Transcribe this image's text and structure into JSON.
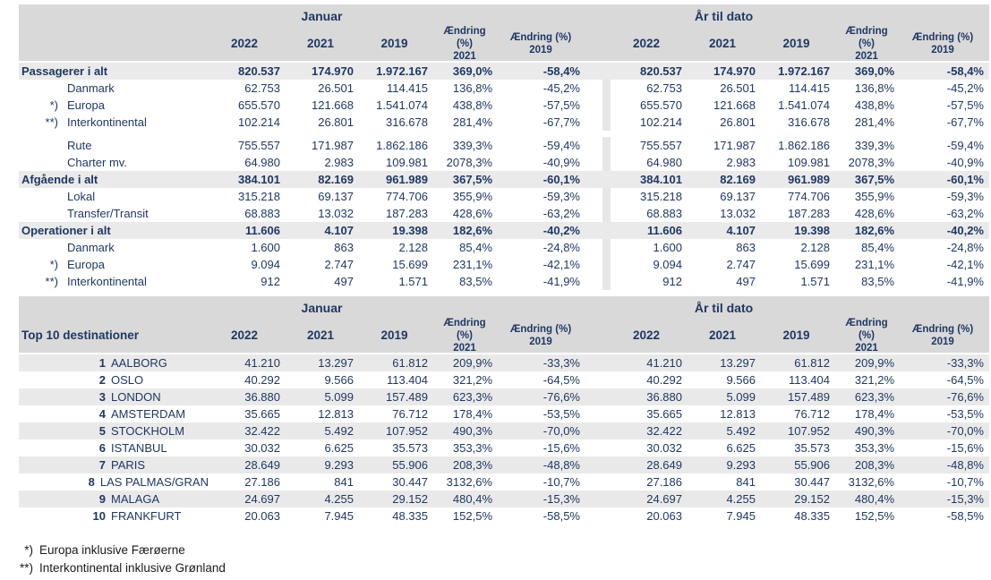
{
  "colors": {
    "text_navy": "#1F3864",
    "header_bg": "#D9D9D9",
    "total_row_bg": "#EAEAEA",
    "alt_row_bg": "#E9E9E9",
    "divider_strip": "#E7E7E7",
    "footnote_text": "#1A1A1A"
  },
  "period_headers": {
    "month": "Januar",
    "ytd": "År til dato"
  },
  "columns": {
    "years": [
      "2022",
      "2021",
      "2019"
    ],
    "change_label": "Ændring (%)",
    "change_years": [
      "2021",
      "2019"
    ]
  },
  "traffic_table": {
    "rows": [
      {
        "type": "total",
        "label": "Passagerer i alt",
        "januar": [
          "820.537",
          "174.970",
          "1.972.167",
          "369,0%",
          "-58,4%"
        ],
        "ytd": [
          "820.537",
          "174.970",
          "1.972.167",
          "369,0%",
          "-58,4%"
        ]
      },
      {
        "type": "sub",
        "marker": "",
        "label": "Danmark",
        "januar": [
          "62.753",
          "26.501",
          "114.415",
          "136,8%",
          "-45,2%"
        ],
        "ytd": [
          "62.753",
          "26.501",
          "114.415",
          "136,8%",
          "-45,2%"
        ]
      },
      {
        "type": "sub",
        "marker": "*)",
        "label": "Europa",
        "januar": [
          "655.570",
          "121.668",
          "1.541.074",
          "438,8%",
          "-57,5%"
        ],
        "ytd": [
          "655.570",
          "121.668",
          "1.541.074",
          "438,8%",
          "-57,5%"
        ]
      },
      {
        "type": "sub",
        "marker": "**)",
        "label": "Interkontinental",
        "januar": [
          "102.214",
          "26.801",
          "316.678",
          "281,4%",
          "-67,7%"
        ],
        "ytd": [
          "102.214",
          "26.801",
          "316.678",
          "281,4%",
          "-67,7%"
        ]
      },
      {
        "type": "gap"
      },
      {
        "type": "sub",
        "marker": "",
        "label": "Rute",
        "januar": [
          "755.557",
          "171.987",
          "1.862.186",
          "339,3%",
          "-59,4%"
        ],
        "ytd": [
          "755.557",
          "171.987",
          "1.862.186",
          "339,3%",
          "-59,4%"
        ]
      },
      {
        "type": "sub",
        "marker": "",
        "label": "Charter mv.",
        "januar": [
          "64.980",
          "2.983",
          "109.981",
          "2078,3%",
          "-40,9%"
        ],
        "ytd": [
          "64.980",
          "2.983",
          "109.981",
          "2078,3%",
          "-40,9%"
        ]
      },
      {
        "type": "total",
        "label": "Afgående i alt",
        "januar": [
          "384.101",
          "82.169",
          "961.989",
          "367,5%",
          "-60,1%"
        ],
        "ytd": [
          "384.101",
          "82.169",
          "961.989",
          "367,5%",
          "-60,1%"
        ]
      },
      {
        "type": "sub",
        "marker": "",
        "label": "Lokal",
        "januar": [
          "315.218",
          "69.137",
          "774.706",
          "355,9%",
          "-59,3%"
        ],
        "ytd": [
          "315.218",
          "69.137",
          "774.706",
          "355,9%",
          "-59,3%"
        ]
      },
      {
        "type": "sub",
        "marker": "",
        "label": "Transfer/Transit",
        "januar": [
          "68.883",
          "13.032",
          "187.283",
          "428,6%",
          "-63,2%"
        ],
        "ytd": [
          "68.883",
          "13.032",
          "187.283",
          "428,6%",
          "-63,2%"
        ]
      },
      {
        "type": "total",
        "label": "Operationer i alt",
        "januar": [
          "11.606",
          "4.107",
          "19.398",
          "182,6%",
          "-40,2%"
        ],
        "ytd": [
          "11.606",
          "4.107",
          "19.398",
          "182,6%",
          "-40,2%"
        ]
      },
      {
        "type": "sub",
        "marker": "",
        "label": "Danmark",
        "januar": [
          "1.600",
          "863",
          "2.128",
          "85,4%",
          "-24,8%"
        ],
        "ytd": [
          "1.600",
          "863",
          "2.128",
          "85,4%",
          "-24,8%"
        ]
      },
      {
        "type": "sub",
        "marker": "*)",
        "label": "Europa",
        "januar": [
          "9.094",
          "2.747",
          "15.699",
          "231,1%",
          "-42,1%"
        ],
        "ytd": [
          "9.094",
          "2.747",
          "15.699",
          "231,1%",
          "-42,1%"
        ]
      },
      {
        "type": "sub",
        "marker": "**)",
        "label": "Interkontinental",
        "januar": [
          "912",
          "497",
          "1.571",
          "83,5%",
          "-41,9%"
        ],
        "ytd": [
          "912",
          "497",
          "1.571",
          "83,5%",
          "-41,9%"
        ]
      }
    ]
  },
  "top10_table": {
    "title": "Top 10 destinationer",
    "rows": [
      {
        "rank": "1",
        "name": "AALBORG",
        "januar": [
          "41.210",
          "13.297",
          "61.812",
          "209,9%",
          "-33,3%"
        ],
        "ytd": [
          "41.210",
          "13.297",
          "61.812",
          "209,9%",
          "-33,3%"
        ]
      },
      {
        "rank": "2",
        "name": "OSLO",
        "januar": [
          "40.292",
          "9.566",
          "113.404",
          "321,2%",
          "-64,5%"
        ],
        "ytd": [
          "40.292",
          "9.566",
          "113.404",
          "321,2%",
          "-64,5%"
        ]
      },
      {
        "rank": "3",
        "name": "LONDON",
        "januar": [
          "36.880",
          "5.099",
          "157.489",
          "623,3%",
          "-76,6%"
        ],
        "ytd": [
          "36.880",
          "5.099",
          "157.489",
          "623,3%",
          "-76,6%"
        ]
      },
      {
        "rank": "4",
        "name": "AMSTERDAM",
        "januar": [
          "35.665",
          "12.813",
          "76.712",
          "178,4%",
          "-53,5%"
        ],
        "ytd": [
          "35.665",
          "12.813",
          "76.712",
          "178,4%",
          "-53,5%"
        ]
      },
      {
        "rank": "5",
        "name": "STOCKHOLM",
        "januar": [
          "32.422",
          "5.492",
          "107.952",
          "490,3%",
          "-70,0%"
        ],
        "ytd": [
          "32.422",
          "5.492",
          "107.952",
          "490,3%",
          "-70,0%"
        ]
      },
      {
        "rank": "6",
        "name": "ISTANBUL",
        "januar": [
          "30.032",
          "6.625",
          "35.573",
          "353,3%",
          "-15,6%"
        ],
        "ytd": [
          "30.032",
          "6.625",
          "35.573",
          "353,3%",
          "-15,6%"
        ]
      },
      {
        "rank": "7",
        "name": "PARIS",
        "januar": [
          "28.649",
          "9.293",
          "55.906",
          "208,3%",
          "-48,8%"
        ],
        "ytd": [
          "28.649",
          "9.293",
          "55.906",
          "208,3%",
          "-48,8%"
        ]
      },
      {
        "rank": "8",
        "name": "LAS PALMAS/GRAN",
        "januar": [
          "27.186",
          "841",
          "30.447",
          "3132,6%",
          "-10,7%"
        ],
        "ytd": [
          "27.186",
          "841",
          "30.447",
          "3132,6%",
          "-10,7%"
        ]
      },
      {
        "rank": "9",
        "name": "MALAGA",
        "januar": [
          "24.697",
          "4.255",
          "29.152",
          "480,4%",
          "-15,3%"
        ],
        "ytd": [
          "24.697",
          "4.255",
          "29.152",
          "480,4%",
          "-15,3%"
        ]
      },
      {
        "rank": "10",
        "name": "FRANKFURT",
        "januar": [
          "20.063",
          "7.945",
          "48.335",
          "152,5%",
          "-58,5%"
        ],
        "ytd": [
          "20.063",
          "7.945",
          "48.335",
          "152,5%",
          "-58,5%"
        ]
      }
    ]
  },
  "footnotes": [
    {
      "marker": "*)",
      "text": "Europa inklusive Færøerne"
    },
    {
      "marker": "**)",
      "text": "Interkontinental inklusive Grønland"
    }
  ]
}
